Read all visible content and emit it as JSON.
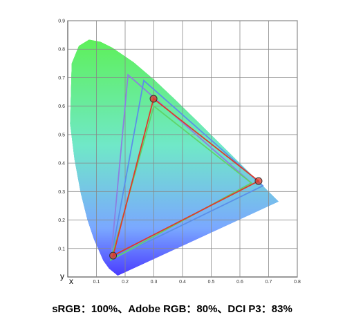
{
  "chart_data": {
    "type": "line",
    "caption": "sRGB：100%、Adobe RGB：80%、DCI P3：83%",
    "x_label": "x",
    "y_label": "y",
    "xlim": [
      0,
      0.8
    ],
    "ylim": [
      0,
      0.9
    ],
    "xticks": [
      0.1,
      0.2,
      0.3,
      0.4,
      0.5,
      0.6,
      0.7,
      0.8
    ],
    "yticks": [
      0.1,
      0.2,
      0.3,
      0.4,
      0.5,
      0.6,
      0.7,
      0.8,
      0.9
    ],
    "grid": true,
    "series": [
      {
        "color": "#8c7fe0",
        "x": [
          0.64,
          0.21,
          0.15
        ],
        "values": [
          0.33,
          0.71,
          0.06
        ]
      },
      {
        "color": "#5b8fe8",
        "x": [
          0.68,
          0.265,
          0.15
        ],
        "values": [
          0.32,
          0.69,
          0.06
        ]
      },
      {
        "color": "#5fd46a",
        "x": [
          0.64,
          0.3,
          0.15
        ],
        "values": [
          0.33,
          0.6,
          0.06
        ]
      },
      {
        "color": "#e03a2a",
        "x": [
          0.665,
          0.299,
          0.158
        ],
        "values": [
          0.337,
          0.626,
          0.075
        ],
        "markers": true
      }
    ]
  }
}
